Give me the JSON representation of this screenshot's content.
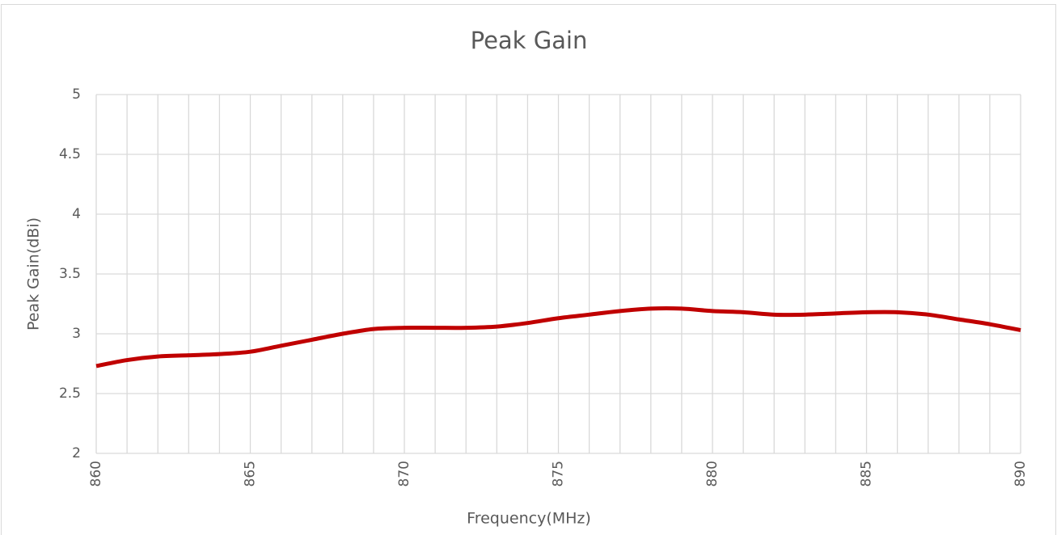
{
  "chart_data": {
    "type": "line",
    "title": "Peak Gain",
    "x_label": "Frequency(MHz)",
    "y_label": "Peak Gain(dBi)",
    "x": [
      860,
      861,
      862,
      863,
      864,
      865,
      866,
      867,
      868,
      869,
      870,
      871,
      872,
      873,
      874,
      875,
      876,
      877,
      878,
      879,
      880,
      881,
      882,
      883,
      884,
      885,
      886,
      887,
      888,
      889,
      890
    ],
    "series": [
      {
        "name": "Peak Gain",
        "color": "#c00000",
        "values": [
          2.73,
          2.78,
          2.81,
          2.82,
          2.83,
          2.85,
          2.9,
          2.95,
          3.0,
          3.04,
          3.05,
          3.05,
          3.05,
          3.06,
          3.09,
          3.13,
          3.16,
          3.19,
          3.21,
          3.21,
          3.19,
          3.18,
          3.16,
          3.16,
          3.17,
          3.18,
          3.18,
          3.16,
          3.12,
          3.08,
          3.03
        ]
      }
    ],
    "xlim": [
      860,
      890
    ],
    "xticks": [
      860,
      865,
      870,
      875,
      880,
      885,
      890
    ],
    "xminorticks": [
      861,
      862,
      863,
      864,
      866,
      867,
      868,
      869,
      871,
      872,
      873,
      874,
      876,
      877,
      878,
      879,
      881,
      882,
      883,
      884,
      886,
      887,
      888,
      889
    ],
    "ylim": [
      2,
      5
    ],
    "yticks": [
      2,
      2.5,
      3,
      3.5,
      4,
      4.5,
      5
    ],
    "grid": true,
    "legend": false
  }
}
